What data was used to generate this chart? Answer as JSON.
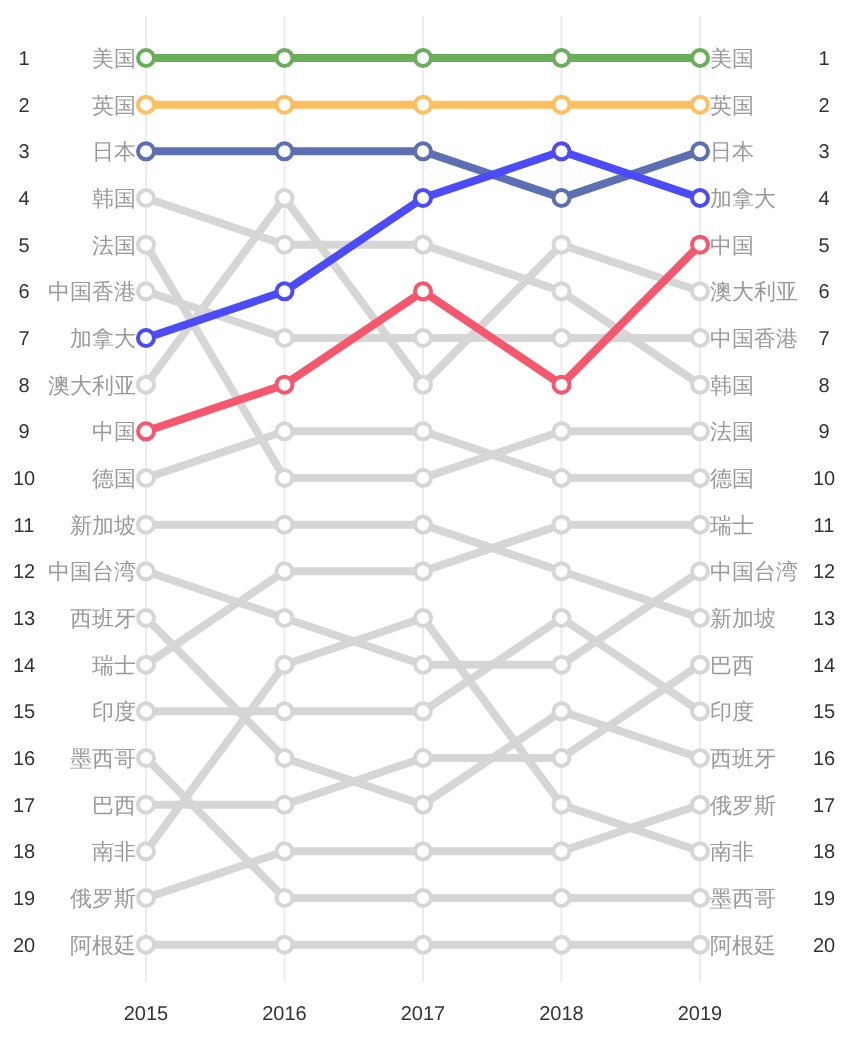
{
  "chart_data": {
    "type": "line",
    "categories": [
      "2015",
      "2016",
      "2017",
      "2018",
      "2019"
    ],
    "ylim": [
      20.8,
      0.1
    ],
    "yticks": [
      1,
      2,
      3,
      4,
      5,
      6,
      7,
      8,
      9,
      10,
      11,
      12,
      13,
      14,
      15,
      16,
      17,
      18,
      19,
      20
    ],
    "y2lim": [
      20.8,
      0.1
    ],
    "y2ticks": [
      1,
      2,
      3,
      4,
      5,
      6,
      7,
      8,
      9,
      10,
      11,
      12,
      13,
      14,
      15,
      16,
      17,
      18,
      19,
      20
    ],
    "grid": "x",
    "legend": false,
    "marker": "circle",
    "line_style": "solid",
    "series": [
      {
        "name": "韩国",
        "color": "#d6d6d6",
        "values": [
          4,
          5,
          5,
          6,
          8
        ]
      },
      {
        "name": "法国",
        "color": "#d6d6d6",
        "values": [
          5,
          10,
          10,
          9,
          9
        ]
      },
      {
        "name": "中国香港",
        "color": "#d6d6d6",
        "values": [
          6,
          7,
          7,
          7,
          7
        ]
      },
      {
        "name": "澳大利亚",
        "color": "#d6d6d6",
        "values": [
          8,
          4,
          8,
          5,
          6
        ]
      },
      {
        "name": "德国",
        "color": "#d6d6d6",
        "values": [
          10,
          9,
          9,
          10,
          10
        ]
      },
      {
        "name": "新加坡",
        "color": "#d6d6d6",
        "values": [
          11,
          11,
          11,
          12,
          13
        ]
      },
      {
        "name": "中国台湾",
        "color": "#d6d6d6",
        "values": [
          12,
          13,
          14,
          14,
          12
        ]
      },
      {
        "name": "西班牙",
        "color": "#d6d6d6",
        "values": [
          13,
          16,
          17,
          15,
          16
        ]
      },
      {
        "name": "瑞士",
        "color": "#d6d6d6",
        "values": [
          14,
          12,
          12,
          11,
          11
        ]
      },
      {
        "name": "印度",
        "color": "#d6d6d6",
        "values": [
          15,
          15,
          15,
          13,
          15
        ]
      },
      {
        "name": "墨西哥",
        "color": "#d6d6d6",
        "values": [
          16,
          19,
          19,
          19,
          19
        ]
      },
      {
        "name": "巴西",
        "color": "#d6d6d6",
        "values": [
          17,
          17,
          16,
          16,
          14
        ]
      },
      {
        "name": "南非",
        "color": "#d6d6d6",
        "values": [
          18,
          14,
          13,
          17,
          18
        ]
      },
      {
        "name": "俄罗斯",
        "color": "#d6d6d6",
        "values": [
          19,
          18,
          18,
          18,
          17
        ]
      },
      {
        "name": "阿根廷",
        "color": "#d6d6d6",
        "values": [
          20,
          20,
          20,
          20,
          20
        ]
      },
      {
        "name": "美国",
        "color": "#6aae5c",
        "values": [
          1,
          1,
          1,
          1,
          1
        ]
      },
      {
        "name": "英国",
        "color": "#ffbf60",
        "values": [
          2,
          2,
          2,
          2,
          2
        ]
      },
      {
        "name": "日本",
        "color": "#5c6fb3",
        "values": [
          3,
          3,
          3,
          4,
          3
        ]
      },
      {
        "name": "加拿大",
        "color": "#4b4bf7",
        "values": [
          7,
          6,
          4,
          3,
          4
        ]
      },
      {
        "name": "中国",
        "color": "#f5586d",
        "values": [
          9,
          8,
          6,
          8,
          5
        ]
      }
    ]
  }
}
